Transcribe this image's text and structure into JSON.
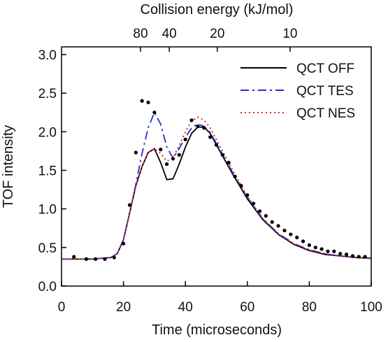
{
  "chart_data": {
    "type": "line",
    "xlabel": "Time (microseconds)",
    "ylabel": "TOF intensity",
    "top_axis_label": "Collision energy (kJ/mol)",
    "xlim": [
      0,
      100
    ],
    "ylim": [
      0.0,
      3.1
    ],
    "x_ticks": [
      0,
      20,
      40,
      60,
      80,
      100
    ],
    "x_tick_labels": [
      "0",
      "20",
      "40",
      "60",
      "80",
      "100"
    ],
    "y_ticks": [
      0.0,
      0.5,
      1.0,
      1.5,
      2.0,
      2.5,
      3.0
    ],
    "y_tick_labels": [
      "0.0",
      "0.5",
      "1.0",
      "1.5",
      "2.0",
      "2.5",
      "3.0"
    ],
    "top_ticks": [
      {
        "label": "80",
        "time": 25.5
      },
      {
        "label": "40",
        "time": 34.8
      },
      {
        "label": "20",
        "time": 50.3
      },
      {
        "label": "10",
        "time": 73.8
      }
    ],
    "grid": false,
    "legend_position": "top-right",
    "series": [
      {
        "name": "QCT OFF",
        "style": "solid",
        "color": "#000000",
        "x": [
          0,
          10,
          16,
          18,
          20,
          22,
          24,
          26,
          28,
          30,
          32,
          34,
          36,
          38,
          40,
          42,
          44,
          46,
          48,
          50,
          55,
          60,
          65,
          70,
          75,
          80,
          85,
          90,
          95,
          100
        ],
        "y": [
          0.35,
          0.35,
          0.37,
          0.42,
          0.6,
          0.95,
          1.3,
          1.55,
          1.73,
          1.78,
          1.6,
          1.38,
          1.39,
          1.58,
          1.8,
          1.98,
          2.06,
          2.06,
          1.98,
          1.83,
          1.47,
          1.13,
          0.86,
          0.67,
          0.54,
          0.46,
          0.41,
          0.39,
          0.37,
          0.36
        ]
      },
      {
        "name": "QCT TES",
        "style": "dash-dot",
        "color": "#2233cc",
        "x": [
          0,
          10,
          16,
          18,
          20,
          22,
          24,
          26,
          28,
          30,
          32,
          34,
          36,
          38,
          40,
          42,
          44,
          46,
          48,
          50,
          55,
          60,
          65,
          70,
          75,
          80,
          85,
          90,
          95,
          100
        ],
        "y": [
          0.35,
          0.35,
          0.37,
          0.42,
          0.6,
          0.95,
          1.32,
          1.72,
          2.05,
          2.25,
          2.1,
          1.8,
          1.66,
          1.78,
          1.93,
          2.05,
          2.1,
          2.07,
          1.99,
          1.85,
          1.49,
          1.15,
          0.87,
          0.68,
          0.55,
          0.47,
          0.42,
          0.39,
          0.37,
          0.36
        ]
      },
      {
        "name": "QCT NES",
        "style": "dotted",
        "color": "#ee2222",
        "x": [
          0,
          10,
          16,
          18,
          20,
          22,
          24,
          26,
          28,
          30,
          32,
          34,
          36,
          38,
          40,
          42,
          44,
          46,
          48,
          50,
          55,
          60,
          65,
          70,
          75,
          80,
          85,
          90,
          95,
          100
        ],
        "y": [
          0.35,
          0.35,
          0.37,
          0.42,
          0.6,
          0.95,
          1.3,
          1.55,
          1.73,
          1.78,
          1.72,
          1.62,
          1.66,
          1.82,
          2.0,
          2.14,
          2.19,
          2.15,
          2.05,
          1.9,
          1.52,
          1.16,
          0.88,
          0.68,
          0.55,
          0.47,
          0.42,
          0.39,
          0.37,
          0.36
        ]
      }
    ],
    "points": {
      "color": "#000000",
      "x": [
        4,
        8,
        11,
        14,
        17,
        20,
        22,
        24,
        26,
        28,
        30,
        32,
        34,
        36,
        38,
        40,
        42,
        44,
        46,
        48,
        50,
        52,
        54,
        56,
        58,
        60,
        62,
        64,
        66,
        68,
        70,
        72,
        74,
        76,
        78,
        80,
        82,
        84,
        86,
        88,
        90,
        92,
        94,
        96,
        98
      ],
      "y": [
        0.38,
        0.35,
        0.35,
        0.35,
        0.37,
        0.55,
        1.05,
        1.73,
        2.4,
        2.38,
        2.25,
        1.77,
        1.58,
        1.65,
        1.7,
        1.9,
        2.15,
        2.07,
        2.05,
        1.93,
        1.83,
        1.7,
        1.6,
        1.42,
        1.3,
        1.18,
        1.07,
        0.97,
        0.91,
        0.83,
        0.78,
        0.72,
        0.67,
        0.63,
        0.58,
        0.53,
        0.5,
        0.48,
        0.45,
        0.45,
        0.42,
        0.41,
        0.39,
        0.38,
        0.38
      ]
    }
  }
}
